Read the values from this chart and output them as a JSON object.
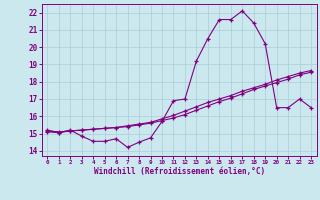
{
  "xlabel": "Windchill (Refroidissement éolien,°C)",
  "bg_color": "#cce8ef",
  "grid_color": "#aacdd6",
  "line_color": "#800080",
  "ylim": [
    13.7,
    22.5
  ],
  "xlim": [
    -0.5,
    23.5
  ],
  "yticks": [
    14,
    15,
    16,
    17,
    18,
    19,
    20,
    21,
    22
  ],
  "xticks": [
    0,
    1,
    2,
    3,
    4,
    5,
    6,
    7,
    8,
    9,
    10,
    11,
    12,
    13,
    14,
    15,
    16,
    17,
    18,
    19,
    20,
    21,
    22,
    23
  ],
  "series": [
    {
      "x": [
        0,
        1,
        2,
        3,
        4,
        5,
        6,
        7,
        8,
        9,
        10,
        11,
        12,
        13,
        14,
        15,
        16,
        17,
        18,
        19,
        20,
        21,
        22,
        23
      ],
      "y": [
        15.2,
        15.05,
        15.2,
        14.85,
        14.55,
        14.55,
        14.7,
        14.2,
        14.5,
        14.75,
        15.7,
        16.9,
        17.0,
        19.2,
        20.5,
        21.6,
        21.6,
        22.1,
        21.4,
        20.2,
        16.5,
        16.5,
        17.0,
        16.5
      ]
    },
    {
      "x": [
        0,
        1,
        2,
        3,
        4,
        5,
        6,
        7,
        8,
        9,
        10,
        11,
        12,
        13,
        14,
        15,
        16,
        17,
        18,
        19,
        20,
        21,
        22,
        23
      ],
      "y": [
        15.1,
        15.05,
        15.15,
        15.2,
        15.25,
        15.3,
        15.35,
        15.4,
        15.5,
        15.6,
        15.75,
        15.9,
        16.1,
        16.35,
        16.6,
        16.85,
        17.05,
        17.3,
        17.55,
        17.75,
        17.95,
        18.15,
        18.4,
        18.55
      ]
    },
    {
      "x": [
        0,
        1,
        2,
        3,
        4,
        5,
        6,
        7,
        8,
        9,
        10,
        11,
        12,
        13,
        14,
        15,
        16,
        17,
        18,
        19,
        20,
        21,
        22,
        23
      ],
      "y": [
        15.15,
        15.1,
        15.15,
        15.2,
        15.25,
        15.3,
        15.35,
        15.45,
        15.55,
        15.65,
        15.85,
        16.05,
        16.3,
        16.55,
        16.8,
        17.0,
        17.2,
        17.45,
        17.65,
        17.85,
        18.1,
        18.3,
        18.5,
        18.65
      ]
    }
  ]
}
